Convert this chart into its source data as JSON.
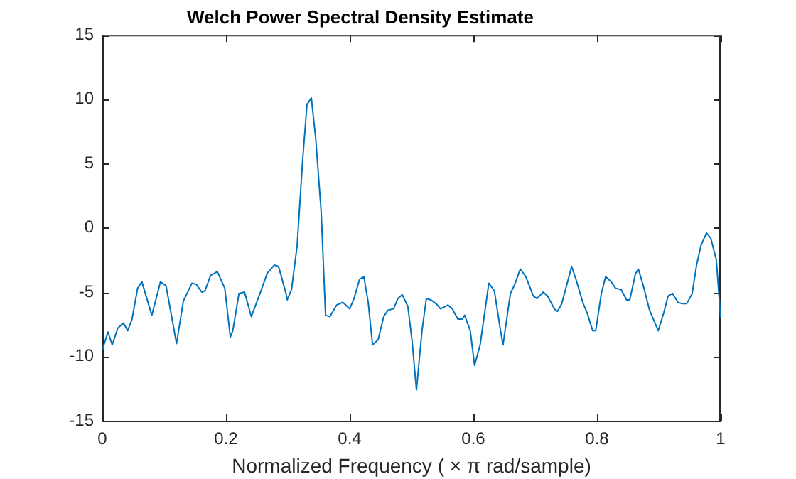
{
  "chart_data": {
    "type": "line",
    "title": "Welch Power Spectral Density Estimate",
    "xlabel": "Normalized Frequency ( × π rad/sample)",
    "x": [
      0,
      0.009,
      0.016,
      0.025,
      0.034,
      0.041,
      0.048,
      0.057,
      0.064,
      0.08,
      0.094,
      0.103,
      0.12,
      0.131,
      0.145,
      0.152,
      0.161,
      0.166,
      0.175,
      0.186,
      0.198,
      0.207,
      0.211,
      0.221,
      0.23,
      0.241,
      0.255,
      0.267,
      0.278,
      0.285,
      0.297,
      0.299,
      0.306,
      0.315,
      0.324,
      0.331,
      0.338,
      0.345,
      0.354,
      0.361,
      0.368,
      0.379,
      0.389,
      0.4,
      0.407,
      0.416,
      0.423,
      0.43,
      0.437,
      0.446,
      0.455,
      0.462,
      0.471,
      0.478,
      0.485,
      0.494,
      0.501,
      0.508,
      0.517,
      0.524,
      0.531,
      0.54,
      0.547,
      0.559,
      0.566,
      0.575,
      0.582,
      0.586,
      0.595,
      0.602,
      0.611,
      0.621,
      0.625,
      0.634,
      0.644,
      0.648,
      0.66,
      0.667,
      0.676,
      0.685,
      0.697,
      0.703,
      0.713,
      0.72,
      0.731,
      0.736,
      0.743,
      0.759,
      0.766,
      0.777,
      0.784,
      0.793,
      0.798,
      0.807,
      0.814,
      0.823,
      0.83,
      0.839,
      0.848,
      0.853,
      0.862,
      0.867,
      0.876,
      0.885,
      0.899,
      0.908,
      0.915,
      0.922,
      0.931,
      0.938,
      0.945,
      0.954,
      0.961,
      0.968,
      0.977,
      0.984,
      0.993,
      1.0
    ],
    "series": [
      {
        "color": "#0072bd",
        "values": [
          -9.5,
          -8.1,
          -9.1,
          -7.8,
          -7.4,
          -8.0,
          -7.1,
          -4.7,
          -4.2,
          -6.8,
          -4.2,
          -4.5,
          -9.0,
          -5.7,
          -4.3,
          -4.4,
          -5.0,
          -4.9,
          -3.7,
          -3.4,
          -4.7,
          -8.5,
          -8.0,
          -5.1,
          -5.0,
          -6.9,
          -5.1,
          -3.5,
          -2.9,
          -3.0,
          -5.1,
          -5.6,
          -4.8,
          -1.4,
          5.3,
          9.6,
          10.1,
          7.0,
          1.2,
          -6.8,
          -6.9,
          -6.0,
          -5.8,
          -6.3,
          -5.5,
          -4.0,
          -3.8,
          -5.8,
          -9.1,
          -8.7,
          -6.9,
          -6.4,
          -6.3,
          -5.5,
          -5.2,
          -6.1,
          -8.8,
          -12.6,
          -8.0,
          -5.5,
          -5.6,
          -5.9,
          -6.3,
          -6.0,
          -6.3,
          -7.1,
          -7.1,
          -6.8,
          -8.0,
          -10.7,
          -9.1,
          -5.7,
          -4.3,
          -4.9,
          -8.0,
          -9.1,
          -5.1,
          -4.4,
          -3.2,
          -3.8,
          -5.3,
          -5.5,
          -5.0,
          -5.3,
          -6.3,
          -6.5,
          -5.9,
          -3.0,
          -4.0,
          -5.8,
          -6.6,
          -8.0,
          -8.0,
          -5.1,
          -3.8,
          -4.2,
          -4.7,
          -4.8,
          -5.6,
          -5.6,
          -3.6,
          -3.2,
          -4.7,
          -6.4,
          -8.0,
          -6.6,
          -5.3,
          -5.1,
          -5.8,
          -5.9,
          -5.9,
          -5.1,
          -2.9,
          -1.4,
          -0.4,
          -0.8,
          -2.5,
          -7.0
        ]
      }
    ],
    "xlim": [
      0,
      1
    ],
    "xticks": [
      0,
      0.2,
      0.4,
      0.6,
      0.8,
      1
    ],
    "ylim": [
      -15,
      15
    ],
    "yticks": [
      -15,
      -10,
      -5,
      0,
      5,
      10,
      15
    ],
    "grid": false,
    "legend": false,
    "marker": "none",
    "line_style": "solid"
  }
}
